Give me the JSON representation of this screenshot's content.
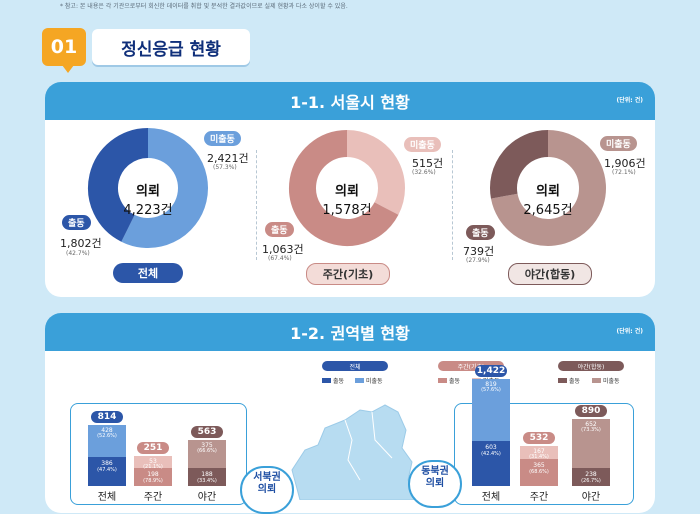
{
  "note": "* 참고: 본 내용은 각 기관으로부터 회신한 데이터를 취합 및 분석한 결과값이므로 실제 현황과 다소 상이할 수 있음.",
  "section": {
    "number": "01",
    "title": "정신응급 현황"
  },
  "panel1": {
    "title": "1-1. 서울시 현황",
    "unit": "(단위: 건)"
  },
  "panel2": {
    "title": "1-2. 권역별 현황",
    "unit": "(단위: 건)"
  },
  "colors": {
    "all_out": "#2c56a8",
    "all_no": "#6b9fdc",
    "day_out": "#c98b86",
    "day_no": "#e9bfba",
    "night_out": "#7d5a5a",
    "night_no": "#b8948f",
    "accent": "#3aa0d9"
  },
  "chart_data": [
    {
      "type": "pie",
      "name": "전체",
      "center_label": "의뢰",
      "center_value": "4,223건",
      "slices": [
        {
          "label": "미출동",
          "value": 2421,
          "value_text": "2,421건",
          "pct_text": "(57.3%)"
        },
        {
          "label": "출동",
          "value": 1802,
          "value_text": "1,802건",
          "pct_text": "(42.7%)"
        }
      ]
    },
    {
      "type": "pie",
      "name": "주간(기초)",
      "center_label": "의뢰",
      "center_value": "1,578건",
      "slices": [
        {
          "label": "미출동",
          "value": 515,
          "value_text": "515건",
          "pct_text": "(32.6%)"
        },
        {
          "label": "출동",
          "value": 1063,
          "value_text": "1,063건",
          "pct_text": "(67.4%)"
        }
      ]
    },
    {
      "type": "pie",
      "name": "야간(합동)",
      "center_label": "의뢰",
      "center_value": "2,645건",
      "slices": [
        {
          "label": "미출동",
          "value": 1906,
          "value_text": "1,906건",
          "pct_text": "(72.1%)"
        },
        {
          "label": "출동",
          "value": 739,
          "value_text": "739건",
          "pct_text": "(27.9%)"
        }
      ]
    },
    {
      "type": "bar",
      "stacked": true,
      "region": "서북권",
      "region_label": "서북권\n의뢰",
      "categories": [
        "전체",
        "주간",
        "야간"
      ],
      "totals": [
        814,
        251,
        563
      ],
      "series": [
        {
          "name": "출동",
          "values": [
            386,
            198,
            188
          ],
          "pct": [
            "(47.4%)",
            "(78.9%)",
            "(33.4%)"
          ]
        },
        {
          "name": "미출동",
          "values": [
            428,
            53,
            375
          ],
          "pct": [
            "(52.6%)",
            "(21.1%)",
            "(66.6%)"
          ]
        }
      ]
    },
    {
      "type": "bar",
      "stacked": true,
      "region": "동북권",
      "region_label": "동북권\n의뢰",
      "categories": [
        "전체",
        "주간",
        "야간"
      ],
      "totals": [
        1422,
        532,
        890
      ],
      "series": [
        {
          "name": "출동",
          "values": [
            603,
            365,
            238
          ],
          "pct": [
            "(42.4%)",
            "(68.6%)",
            "(26.7%)"
          ]
        },
        {
          "name": "미출동",
          "values": [
            819,
            167,
            652
          ],
          "pct": [
            "(57.6%)",
            "(31.4%)",
            "(73.3%)"
          ]
        }
      ]
    }
  ],
  "legend": {
    "groups": [
      "전체",
      "주간(기초)",
      "야간(합동)"
    ],
    "items": [
      "출동",
      "미출동"
    ]
  }
}
